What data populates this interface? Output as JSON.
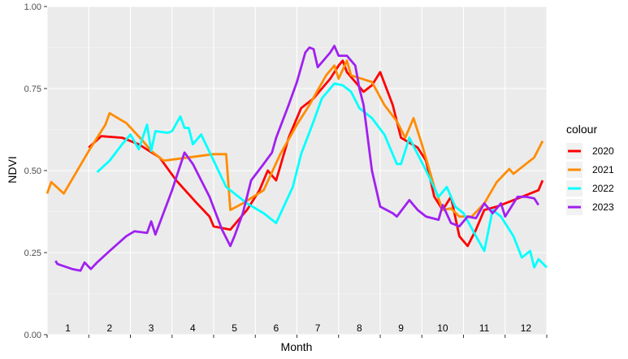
{
  "chart_data": {
    "type": "line",
    "xlabel": "Month",
    "ylabel": "NDVI",
    "ylim": [
      0,
      1
    ],
    "y_ticks": [
      "0.00",
      "0.25",
      "0.50",
      "0.75",
      "1.00"
    ],
    "y_tick_values": [
      0,
      0.25,
      0.5,
      0.75,
      1
    ],
    "xlim": [
      0.5,
      12.5
    ],
    "month_labels": [
      "1",
      "2",
      "3",
      "4",
      "5",
      "6",
      "7",
      "8",
      "9",
      "10",
      "11",
      "12"
    ],
    "grid": true,
    "legend": {
      "title": "colour",
      "position": "right"
    },
    "series": [
      {
        "name": "2020",
        "color": "#ff0000",
        "points": [
          [
            1.5,
            0.57
          ],
          [
            1.8,
            0.605
          ],
          [
            2.3,
            0.6
          ],
          [
            2.7,
            0.58
          ],
          [
            3.2,
            0.54
          ],
          [
            3.6,
            0.47
          ],
          [
            4.1,
            0.4
          ],
          [
            4.4,
            0.36
          ],
          [
            4.5,
            0.33
          ],
          [
            4.9,
            0.32
          ],
          [
            5.3,
            0.38
          ],
          [
            5.6,
            0.44
          ],
          [
            5.8,
            0.5
          ],
          [
            6.0,
            0.47
          ],
          [
            6.3,
            0.6
          ],
          [
            6.6,
            0.69
          ],
          [
            6.9,
            0.72
          ],
          [
            7.3,
            0.78
          ],
          [
            7.5,
            0.82
          ],
          [
            7.6,
            0.835
          ],
          [
            7.7,
            0.8
          ],
          [
            7.9,
            0.77
          ],
          [
            8.1,
            0.74
          ],
          [
            8.3,
            0.76
          ],
          [
            8.5,
            0.8
          ],
          [
            8.8,
            0.7
          ],
          [
            9.0,
            0.6
          ],
          [
            9.4,
            0.57
          ],
          [
            9.6,
            0.53
          ],
          [
            9.8,
            0.42
          ],
          [
            10.0,
            0.38
          ],
          [
            10.2,
            0.42
          ],
          [
            10.4,
            0.3
          ],
          [
            10.6,
            0.27
          ],
          [
            10.8,
            0.32
          ],
          [
            11.0,
            0.38
          ],
          [
            11.3,
            0.39
          ],
          [
            11.7,
            0.41
          ],
          [
            12.1,
            0.43
          ],
          [
            12.3,
            0.44
          ],
          [
            12.4,
            0.47
          ]
        ]
      },
      {
        "name": "2021",
        "color": "#ff8c00",
        "points": [
          [
            0.5,
            0.43
          ],
          [
            0.6,
            0.465
          ],
          [
            0.9,
            0.43
          ],
          [
            1.5,
            0.56
          ],
          [
            1.9,
            0.64
          ],
          [
            2.0,
            0.675
          ],
          [
            2.2,
            0.66
          ],
          [
            2.4,
            0.645
          ],
          [
            2.8,
            0.59
          ],
          [
            3.0,
            0.56
          ],
          [
            3.3,
            0.53
          ],
          [
            3.9,
            0.54
          ],
          [
            4.5,
            0.55
          ],
          [
            4.8,
            0.55
          ],
          [
            4.9,
            0.38
          ],
          [
            5.2,
            0.4
          ],
          [
            5.7,
            0.44
          ],
          [
            6.1,
            0.55
          ],
          [
            6.5,
            0.64
          ],
          [
            6.8,
            0.7
          ],
          [
            7.2,
            0.79
          ],
          [
            7.4,
            0.82
          ],
          [
            7.5,
            0.78
          ],
          [
            7.7,
            0.835
          ],
          [
            7.8,
            0.79
          ],
          [
            8.3,
            0.77
          ],
          [
            8.6,
            0.7
          ],
          [
            8.9,
            0.65
          ],
          [
            9.1,
            0.6
          ],
          [
            9.3,
            0.66
          ],
          [
            9.5,
            0.58
          ],
          [
            9.8,
            0.45
          ],
          [
            10.0,
            0.38
          ],
          [
            10.2,
            0.385
          ],
          [
            10.4,
            0.36
          ],
          [
            10.7,
            0.36
          ],
          [
            11.0,
            0.4
          ],
          [
            11.3,
            0.465
          ],
          [
            11.6,
            0.505
          ],
          [
            11.7,
            0.49
          ],
          [
            12.2,
            0.54
          ],
          [
            12.4,
            0.59
          ]
        ]
      },
      {
        "name": "2022",
        "color": "#00ffff",
        "points": [
          [
            1.7,
            0.495
          ],
          [
            2.0,
            0.53
          ],
          [
            2.3,
            0.58
          ],
          [
            2.5,
            0.61
          ],
          [
            2.7,
            0.565
          ],
          [
            2.9,
            0.64
          ],
          [
            3.0,
            0.56
          ],
          [
            3.1,
            0.62
          ],
          [
            3.4,
            0.615
          ],
          [
            3.5,
            0.62
          ],
          [
            3.7,
            0.665
          ],
          [
            3.8,
            0.63
          ],
          [
            3.9,
            0.63
          ],
          [
            4.0,
            0.58
          ],
          [
            4.2,
            0.61
          ],
          [
            4.5,
            0.53
          ],
          [
            4.8,
            0.45
          ],
          [
            5.3,
            0.4
          ],
          [
            5.7,
            0.37
          ],
          [
            6.0,
            0.34
          ],
          [
            6.4,
            0.45
          ],
          [
            6.6,
            0.55
          ],
          [
            6.9,
            0.65
          ],
          [
            7.1,
            0.72
          ],
          [
            7.4,
            0.765
          ],
          [
            7.6,
            0.76
          ],
          [
            7.8,
            0.74
          ],
          [
            8.0,
            0.69
          ],
          [
            8.3,
            0.66
          ],
          [
            8.6,
            0.61
          ],
          [
            8.9,
            0.52
          ],
          [
            9.0,
            0.52
          ],
          [
            9.2,
            0.6
          ],
          [
            9.4,
            0.55
          ],
          [
            9.6,
            0.5
          ],
          [
            9.9,
            0.42
          ],
          [
            10.1,
            0.45
          ],
          [
            10.3,
            0.39
          ],
          [
            10.5,
            0.37
          ],
          [
            10.8,
            0.3
          ],
          [
            11.0,
            0.255
          ],
          [
            11.2,
            0.38
          ],
          [
            11.4,
            0.36
          ],
          [
            11.7,
            0.3
          ],
          [
            11.9,
            0.235
          ],
          [
            12.1,
            0.255
          ],
          [
            12.2,
            0.205
          ],
          [
            12.3,
            0.23
          ],
          [
            12.5,
            0.205
          ]
        ]
      },
      {
        "name": "2023",
        "color": "#a020f0",
        "points": [
          [
            0.7,
            0.225
          ],
          [
            0.75,
            0.215
          ],
          [
            1.1,
            0.2
          ],
          [
            1.3,
            0.195
          ],
          [
            1.4,
            0.22
          ],
          [
            1.55,
            0.2
          ],
          [
            1.7,
            0.22
          ],
          [
            2.0,
            0.255
          ],
          [
            2.4,
            0.3
          ],
          [
            2.6,
            0.315
          ],
          [
            2.9,
            0.31
          ],
          [
            3.0,
            0.345
          ],
          [
            3.1,
            0.305
          ],
          [
            3.5,
            0.44
          ],
          [
            3.8,
            0.555
          ],
          [
            4.0,
            0.52
          ],
          [
            4.4,
            0.42
          ],
          [
            4.7,
            0.32
          ],
          [
            4.9,
            0.27
          ],
          [
            5.0,
            0.3
          ],
          [
            5.2,
            0.37
          ],
          [
            5.4,
            0.47
          ],
          [
            5.7,
            0.52
          ],
          [
            5.9,
            0.555
          ],
          [
            6.0,
            0.6
          ],
          [
            6.3,
            0.7
          ],
          [
            6.5,
            0.77
          ],
          [
            6.7,
            0.86
          ],
          [
            6.8,
            0.875
          ],
          [
            6.9,
            0.87
          ],
          [
            7.0,
            0.815
          ],
          [
            7.3,
            0.86
          ],
          [
            7.4,
            0.88
          ],
          [
            7.5,
            0.85
          ],
          [
            7.7,
            0.85
          ],
          [
            7.9,
            0.82
          ],
          [
            8.0,
            0.75
          ],
          [
            8.1,
            0.7
          ],
          [
            8.3,
            0.5
          ],
          [
            8.5,
            0.39
          ],
          [
            8.8,
            0.37
          ],
          [
            8.9,
            0.36
          ],
          [
            9.2,
            0.41
          ],
          [
            9.4,
            0.38
          ],
          [
            9.6,
            0.36
          ],
          [
            9.9,
            0.35
          ],
          [
            10.0,
            0.395
          ],
          [
            10.2,
            0.34
          ],
          [
            10.4,
            0.33
          ],
          [
            10.6,
            0.36
          ],
          [
            10.8,
            0.355
          ],
          [
            11.0,
            0.4
          ],
          [
            11.2,
            0.37
          ],
          [
            11.4,
            0.4
          ],
          [
            11.5,
            0.36
          ],
          [
            11.7,
            0.4
          ],
          [
            11.8,
            0.42
          ],
          [
            12.0,
            0.42
          ],
          [
            12.2,
            0.415
          ],
          [
            12.3,
            0.395
          ]
        ]
      }
    ]
  }
}
